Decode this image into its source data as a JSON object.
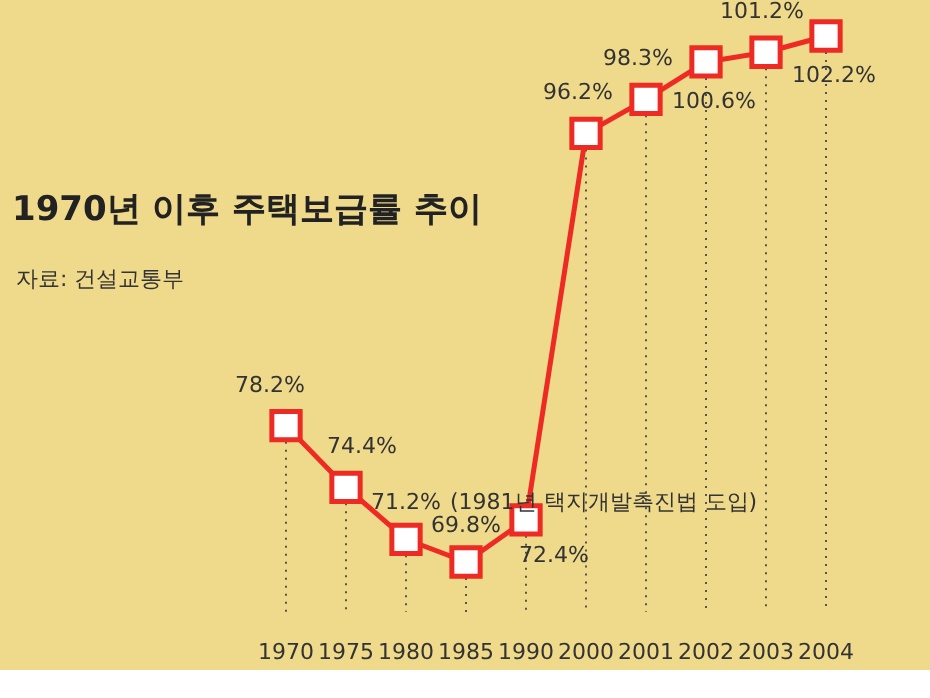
{
  "chart_data": {
    "type": "line",
    "title": "1970년 이후 주택보급률 추이",
    "subtitle": "자료: 건설교통부",
    "categories": [
      "1970",
      "1975",
      "1980",
      "1985",
      "1990",
      "2000",
      "2001",
      "2002",
      "2003",
      "2004"
    ],
    "values": [
      78.2,
      74.4,
      71.2,
      69.8,
      72.4,
      96.2,
      98.3,
      100.6,
      101.2,
      102.2
    ],
    "value_labels": [
      "78.2%",
      "74.4%",
      "71.2%",
      "69.8%",
      "72.4%",
      "96.2%",
      "98.3%",
      "100.6%",
      "101.2%",
      "102.2%"
    ],
    "color": "#ee2a24",
    "marker": "square",
    "line_style": "solid",
    "grid": "x",
    "annotations": [
      {
        "text": "(1981년 택지개발촉진법 도입)",
        "x": "1980",
        "y": 71.2
      }
    ]
  }
}
